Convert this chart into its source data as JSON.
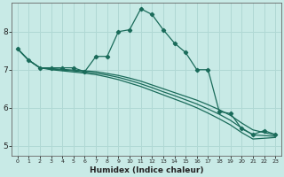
{
  "xlabel": "Humidex (Indice chaleur)",
  "background_color": "#c8eae6",
  "grid_color": "#b0d8d4",
  "line_color": "#1a6b5a",
  "xlim": [
    -0.5,
    23.5
  ],
  "ylim": [
    4.75,
    8.75
  ],
  "yticks": [
    5,
    6,
    7,
    8
  ],
  "xticks": [
    0,
    1,
    2,
    3,
    4,
    5,
    6,
    7,
    8,
    9,
    10,
    11,
    12,
    13,
    14,
    15,
    16,
    17,
    18,
    19,
    20,
    21,
    22,
    23
  ],
  "series1_x": [
    0,
    1,
    2,
    3,
    4,
    5,
    6,
    7,
    8,
    9,
    10,
    11,
    12,
    13,
    14,
    15,
    16,
    17,
    18,
    19,
    20,
    21,
    22,
    23
  ],
  "series1_y": [
    7.55,
    7.25,
    7.05,
    7.05,
    7.05,
    7.05,
    6.95,
    7.35,
    7.35,
    8.0,
    8.05,
    8.6,
    8.45,
    8.05,
    7.7,
    7.45,
    7.0,
    7.0,
    5.9,
    5.85,
    5.45,
    5.3,
    5.4,
    5.3
  ],
  "series2_x": [
    0,
    1,
    2,
    3,
    4,
    5,
    6,
    7,
    8,
    9,
    10,
    11,
    12,
    13,
    14,
    15,
    16,
    17,
    18,
    19,
    20,
    21,
    22,
    23
  ],
  "series2_y": [
    7.55,
    7.25,
    7.05,
    7.03,
    7.01,
    6.99,
    6.97,
    6.95,
    6.9,
    6.85,
    6.78,
    6.7,
    6.6,
    6.5,
    6.4,
    6.3,
    6.2,
    6.08,
    5.95,
    5.8,
    5.6,
    5.42,
    5.35,
    5.28
  ],
  "series3_x": [
    0,
    1,
    2,
    3,
    4,
    5,
    6,
    7,
    8,
    9,
    10,
    11,
    12,
    13,
    14,
    15,
    16,
    17,
    18,
    19,
    20,
    21,
    22,
    23
  ],
  "series3_y": [
    7.55,
    7.25,
    7.05,
    7.02,
    6.99,
    6.97,
    6.94,
    6.91,
    6.86,
    6.8,
    6.72,
    6.63,
    6.53,
    6.42,
    6.32,
    6.21,
    6.1,
    5.97,
    5.83,
    5.67,
    5.47,
    5.29,
    5.27,
    5.25
  ],
  "series4_x": [
    0,
    1,
    2,
    3,
    4,
    5,
    6,
    7,
    8,
    9,
    10,
    11,
    12,
    13,
    14,
    15,
    16,
    17,
    18,
    19,
    20,
    21,
    22,
    23
  ],
  "series4_y": [
    7.55,
    7.25,
    7.05,
    7.0,
    6.97,
    6.94,
    6.91,
    6.87,
    6.81,
    6.74,
    6.65,
    6.56,
    6.45,
    6.34,
    6.23,
    6.12,
    6.0,
    5.86,
    5.71,
    5.55,
    5.35,
    5.18,
    5.2,
    5.22
  ]
}
